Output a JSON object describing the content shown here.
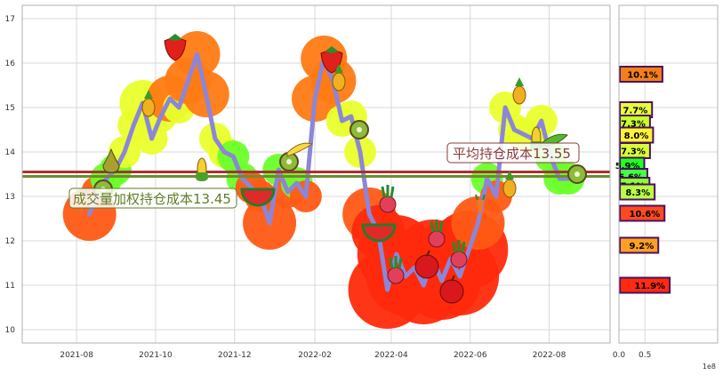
{
  "chart_data": [
    {
      "type": "line",
      "x_axis": {
        "tick_labels": [
          "2021-08",
          "2021-10",
          "2021-12",
          "2022-02",
          "2022-04",
          "2022-06",
          "2022-08"
        ]
      },
      "y_axis": {
        "ylim": [
          9.7,
          17.3
        ],
        "tick_labels": [
          "10",
          "11",
          "12",
          "13",
          "14",
          "15",
          "16",
          "17"
        ]
      },
      "grid": true,
      "series": [
        {
          "name": "",
          "color": "#8b86d9",
          "x": [
            "2021-08-11",
            "2021-08-17",
            "2021-08-24",
            "2021-08-31",
            "2021-09-07",
            "2021-09-14",
            "2021-09-21",
            "2021-09-28",
            "2021-10-05",
            "2021-10-12",
            "2021-10-19",
            "2021-10-26",
            "2021-11-02",
            "2021-11-09",
            "2021-11-16",
            "2021-11-23",
            "2021-11-30",
            "2021-12-07",
            "2021-12-14",
            "2021-12-21",
            "2021-12-28",
            "2022-01-04",
            "2022-01-11",
            "2022-01-18",
            "2022-01-25",
            "2022-02-01",
            "2022-02-08",
            "2022-02-15",
            "2022-02-22",
            "2022-03-01",
            "2022-03-08",
            "2022-03-15",
            "2022-03-22",
            "2022-03-29",
            "2022-04-05",
            "2022-04-12",
            "2022-04-19",
            "2022-04-26",
            "2022-05-03",
            "2022-05-10",
            "2022-05-17",
            "2022-05-24",
            "2022-05-31",
            "2022-06-07",
            "2022-06-14",
            "2022-06-21",
            "2022-06-28",
            "2022-07-05",
            "2022-07-12",
            "2022-07-19",
            "2022-07-26",
            "2022-08-02",
            "2022-08-09",
            "2022-08-16"
          ],
          "values": [
            12.6,
            13.1,
            13.4,
            13.6,
            14.0,
            14.6,
            15.1,
            14.3,
            14.8,
            15.2,
            15.0,
            15.6,
            16.2,
            15.3,
            14.3,
            14.0,
            13.9,
            13.4,
            13.2,
            13.0,
            12.4,
            13.6,
            13.1,
            13.3,
            13.0,
            15.2,
            16.1,
            15.6,
            14.7,
            14.8,
            14.0,
            12.6,
            12.2,
            10.9,
            11.7,
            11.2,
            11.4,
            11.0,
            11.6,
            11.1,
            11.6,
            11.2,
            11.8,
            12.4,
            13.4,
            13.0,
            15.0,
            14.5,
            14.4,
            14.3,
            14.7,
            13.9,
            13.4,
            13.4
          ]
        }
      ],
      "reference_lines": [
        {
          "label": "平均持仓成本",
          "value": 13.55,
          "display": "平均持仓成本13.55",
          "color": "#a83232"
        },
        {
          "label": "成交量加权持仓成本",
          "value": 13.45,
          "display": "成交量加权持仓成本13.45",
          "color": "#6e8b2f"
        }
      ],
      "annotations": [
        {
          "text": "平均持仓成本13.55",
          "box_color": "#8a3a3a",
          "text_color": "#8a3a3a"
        },
        {
          "text": "成交量加权持仓成本13.45",
          "box_color": "#5e7e28",
          "text_color": "#5e7e28"
        }
      ]
    },
    {
      "type": "bar",
      "orientation": "horizontal",
      "x_axis": {
        "xlim": [
          0,
          1.9
        ],
        "tick_labels": [
          "0.0",
          "0.5"
        ],
        "offset_label": "1e8"
      },
      "y_axis": {
        "shared_with": "price",
        "ylim": [
          9.7,
          17.3
        ]
      },
      "grid": true,
      "bars": [
        {
          "price": 15.75,
          "value": 0.82,
          "label": "10.1%",
          "color": "#f57f17"
        },
        {
          "price": 14.95,
          "value": 0.62,
          "label": "7.7%",
          "color": "#e8ff3a"
        },
        {
          "price": 14.65,
          "value": 0.58,
          "label": "7.3%",
          "color": "#c9ff2a"
        },
        {
          "price": 14.38,
          "value": 0.64,
          "label": "8.0%",
          "color": "#fff238"
        },
        {
          "price": 14.03,
          "value": 0.58,
          "label": "7.3%",
          "color": "#d8ff35"
        },
        {
          "price": 13.7,
          "value": 0.47,
          "label": "5.9%",
          "color": "#22ff22"
        },
        {
          "price": 13.45,
          "value": 0.53,
          "label": "6.6%",
          "color": "#44ff44"
        },
        {
          "price": 13.25,
          "value": 0.57,
          "label": "7.1%",
          "color": "#88ff33"
        },
        {
          "price": 13.1,
          "value": 0.67,
          "label": "8.3%",
          "color": "#b8ff44"
        },
        {
          "price": 12.62,
          "value": 0.86,
          "label": "10.6%",
          "color": "#ff4a20"
        },
        {
          "price": 11.9,
          "value": 0.74,
          "label": "9.2%",
          "color": "#ffa020"
        },
        {
          "price": 11.0,
          "value": 0.96,
          "label": "11.9%",
          "color": "#ff2a10"
        }
      ]
    }
  ],
  "decorations": {
    "fruit_icons": [
      "strawberry-icon",
      "pineapple-icon",
      "pear-icon",
      "kiwi-icon",
      "banana-icon",
      "corn-icon",
      "watermelon-icon",
      "radish-icon",
      "apple-icon",
      "carrot-icon",
      "peas-icon"
    ]
  }
}
